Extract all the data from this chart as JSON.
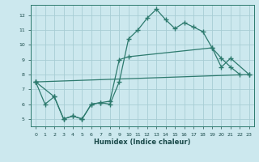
{
  "title": "",
  "xlabel": "Humidex (Indice chaleur)",
  "bg_color": "#cce8ee",
  "line_color": "#2d7a6e",
  "grid_color": "#a8cdd4",
  "xlim": [
    -0.5,
    23.5
  ],
  "ylim": [
    4.5,
    12.7
  ],
  "xticks": [
    0,
    1,
    2,
    3,
    4,
    5,
    6,
    7,
    8,
    9,
    10,
    11,
    12,
    13,
    14,
    15,
    16,
    17,
    18,
    19,
    20,
    21,
    22,
    23
  ],
  "yticks": [
    5,
    6,
    7,
    8,
    9,
    10,
    11,
    12
  ],
  "line1_x": [
    0,
    1,
    2,
    3,
    4,
    5,
    6,
    7,
    8,
    9,
    10,
    11,
    12,
    13,
    14,
    15,
    16,
    17,
    18,
    19,
    20,
    21,
    22
  ],
  "line1_y": [
    7.5,
    6.0,
    6.5,
    5.0,
    5.2,
    5.0,
    6.0,
    6.1,
    6.0,
    7.5,
    10.4,
    11.0,
    11.8,
    12.4,
    11.7,
    11.1,
    11.5,
    11.2,
    10.9,
    9.8,
    9.1,
    8.5,
    8.0
  ],
  "line2_x": [
    0,
    2,
    3,
    4,
    5,
    6,
    7,
    8,
    9,
    10,
    19,
    20,
    21,
    23
  ],
  "line2_y": [
    7.5,
    6.5,
    5.0,
    5.2,
    5.0,
    6.0,
    6.1,
    6.2,
    9.0,
    9.2,
    9.8,
    8.5,
    9.1,
    8.0
  ],
  "line3_x": [
    0,
    23
  ],
  "line3_y": [
    7.5,
    8.0
  ]
}
